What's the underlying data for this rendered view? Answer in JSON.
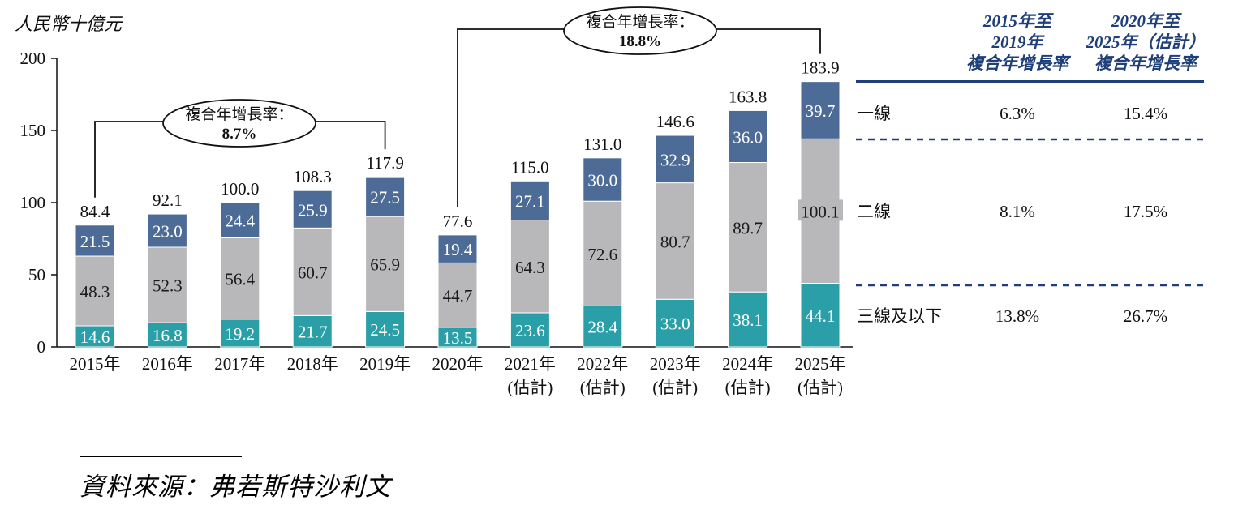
{
  "chart_data": {
    "type": "bar",
    "stacked": true,
    "y_unit_label": "人民幣十億元",
    "ylim": [
      0,
      200
    ],
    "yticks": [
      "0",
      "50",
      "100",
      "150",
      "200"
    ],
    "categories": [
      [
        "2015年"
      ],
      [
        "2016年"
      ],
      [
        "2017年"
      ],
      [
        "2018年"
      ],
      [
        "2019年"
      ],
      [
        "2020年"
      ],
      [
        "2021年",
        "(估計)"
      ],
      [
        "2022年",
        "(估計)"
      ],
      [
        "2023年",
        "(估計)"
      ],
      [
        "2024年",
        "(估計)"
      ],
      [
        "2025年",
        "(估計)"
      ]
    ],
    "series": [
      {
        "name": "三線及以下",
        "color": "#2b9fa8",
        "text_color": "#ffffff",
        "values": [
          14.6,
          16.8,
          19.2,
          21.7,
          24.5,
          13.5,
          23.6,
          28.4,
          33.0,
          38.1,
          44.1
        ],
        "labels": [
          "14.6",
          "16.8",
          "19.2",
          "21.7",
          "24.5",
          "13.5",
          "23.6",
          "28.4",
          "33.0",
          "38.1",
          "44.1"
        ]
      },
      {
        "name": "二線",
        "color": "#b8b8ba",
        "text_color": "#1a1a1a",
        "values": [
          48.3,
          52.3,
          56.4,
          60.7,
          65.9,
          44.7,
          64.3,
          72.6,
          80.7,
          89.7,
          100.1
        ],
        "labels": [
          "48.3",
          "52.3",
          "56.4",
          "60.7",
          "65.9",
          "44.7",
          "64.3",
          "72.6",
          "80.7",
          "89.7",
          "100.1"
        ]
      },
      {
        "name": "一線",
        "color": "#4d6b97",
        "text_color": "#ffffff",
        "values": [
          21.5,
          23.0,
          24.4,
          25.9,
          27.5,
          19.4,
          27.1,
          30.0,
          32.9,
          36.0,
          39.7
        ],
        "labels": [
          "21.5",
          "23.0",
          "24.4",
          "25.9",
          "27.5",
          "19.4",
          "27.1",
          "30.0",
          "32.9",
          "36.0",
          "39.7"
        ]
      }
    ],
    "totals": [
      "84.4",
      "92.1",
      "100.0",
      "108.3",
      "117.9",
      "77.6",
      "115.0",
      "131.0",
      "146.6",
      "163.8",
      "183.9"
    ],
    "cagr_callouts": [
      {
        "label": "複合年增長率：",
        "value": "8.7%",
        "from_index": 0,
        "to_index": 4
      },
      {
        "label": "複合年增長率：",
        "value": "18.8%",
        "from_index": 5,
        "to_index": 10
      }
    ],
    "cagr_table": {
      "headers": [
        [
          "2015年至",
          "2019年",
          "複合年增長率"
        ],
        [
          "2020年至",
          "2025年（估計）",
          "複合年增長率"
        ]
      ],
      "rows": [
        {
          "label": "一線",
          "v1": "6.3%",
          "v2": "15.4%"
        },
        {
          "label": "二線",
          "v1": "8.1%",
          "v2": "17.5%"
        },
        {
          "label": "三線及以下",
          "v1": "13.8%",
          "v2": "26.7%"
        }
      ],
      "header_color": "#1f3f7a",
      "divider_color": "#1f3f7a"
    },
    "source": "資料來源：弗若斯特沙利文"
  }
}
